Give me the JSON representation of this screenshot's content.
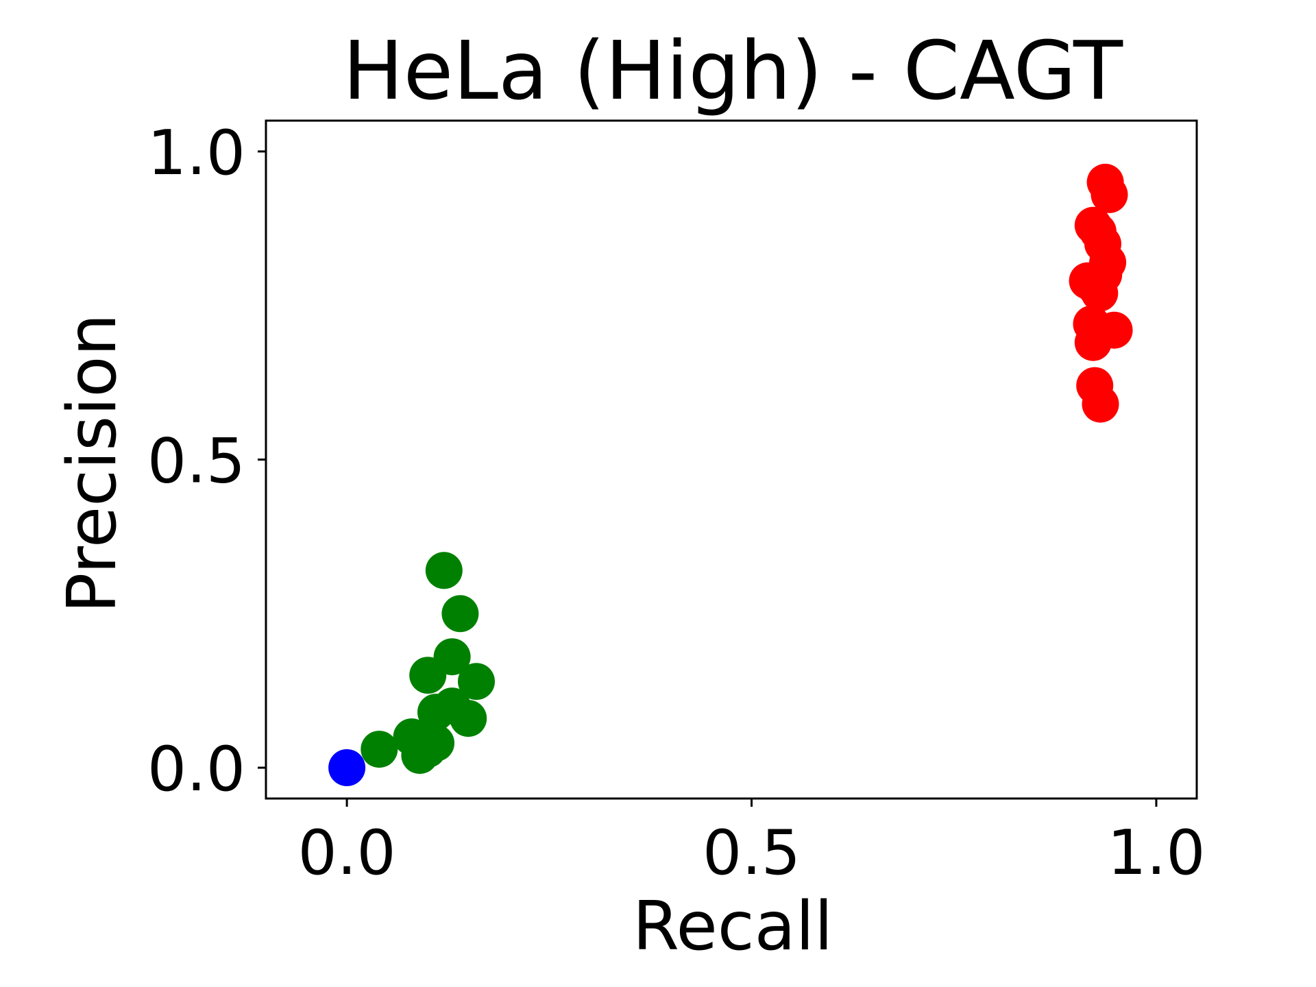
{
  "chart_data": {
    "type": "scatter",
    "title": "HeLa (High) - CAGT",
    "xlabel": "Recall",
    "ylabel": "Precision",
    "xlim": [
      -0.1,
      1.05
    ],
    "ylim": [
      -0.05,
      1.05
    ],
    "xticks": [
      {
        "value": 0.0,
        "label": "0.0"
      },
      {
        "value": 0.5,
        "label": "0.5"
      },
      {
        "value": 1.0,
        "label": "1.0"
      }
    ],
    "yticks": [
      {
        "value": 0.0,
        "label": "0.0"
      },
      {
        "value": 0.5,
        "label": "0.5"
      },
      {
        "value": 1.0,
        "label": "1.0"
      }
    ],
    "grid": false,
    "legend": "none",
    "series": [
      {
        "color": "#0000ff",
        "points": [
          {
            "x": 0.0,
            "y": 0.0
          }
        ]
      },
      {
        "color": "#008000",
        "points": [
          {
            "x": 0.04,
            "y": 0.03
          },
          {
            "x": 0.08,
            "y": 0.05
          },
          {
            "x": 0.09,
            "y": 0.02
          },
          {
            "x": 0.1,
            "y": 0.03
          },
          {
            "x": 0.11,
            "y": 0.04
          },
          {
            "x": 0.1,
            "y": 0.15
          },
          {
            "x": 0.11,
            "y": 0.09
          },
          {
            "x": 0.12,
            "y": 0.32
          },
          {
            "x": 0.13,
            "y": 0.18
          },
          {
            "x": 0.13,
            "y": 0.1
          },
          {
            "x": 0.14,
            "y": 0.25
          },
          {
            "x": 0.15,
            "y": 0.08
          },
          {
            "x": 0.16,
            "y": 0.14
          }
        ]
      },
      {
        "color": "#ff0000",
        "points": [
          {
            "x": 0.937,
            "y": 0.95
          },
          {
            "x": 0.942,
            "y": 0.93
          },
          {
            "x": 0.922,
            "y": 0.88
          },
          {
            "x": 0.928,
            "y": 0.87
          },
          {
            "x": 0.934,
            "y": 0.85
          },
          {
            "x": 0.94,
            "y": 0.82
          },
          {
            "x": 0.935,
            "y": 0.8
          },
          {
            "x": 0.915,
            "y": 0.79
          },
          {
            "x": 0.925,
            "y": 0.78
          },
          {
            "x": 0.93,
            "y": 0.77
          },
          {
            "x": 0.92,
            "y": 0.72
          },
          {
            "x": 0.948,
            "y": 0.71
          },
          {
            "x": 0.922,
            "y": 0.69
          },
          {
            "x": 0.924,
            "y": 0.62
          },
          {
            "x": 0.931,
            "y": 0.59
          }
        ]
      }
    ]
  }
}
